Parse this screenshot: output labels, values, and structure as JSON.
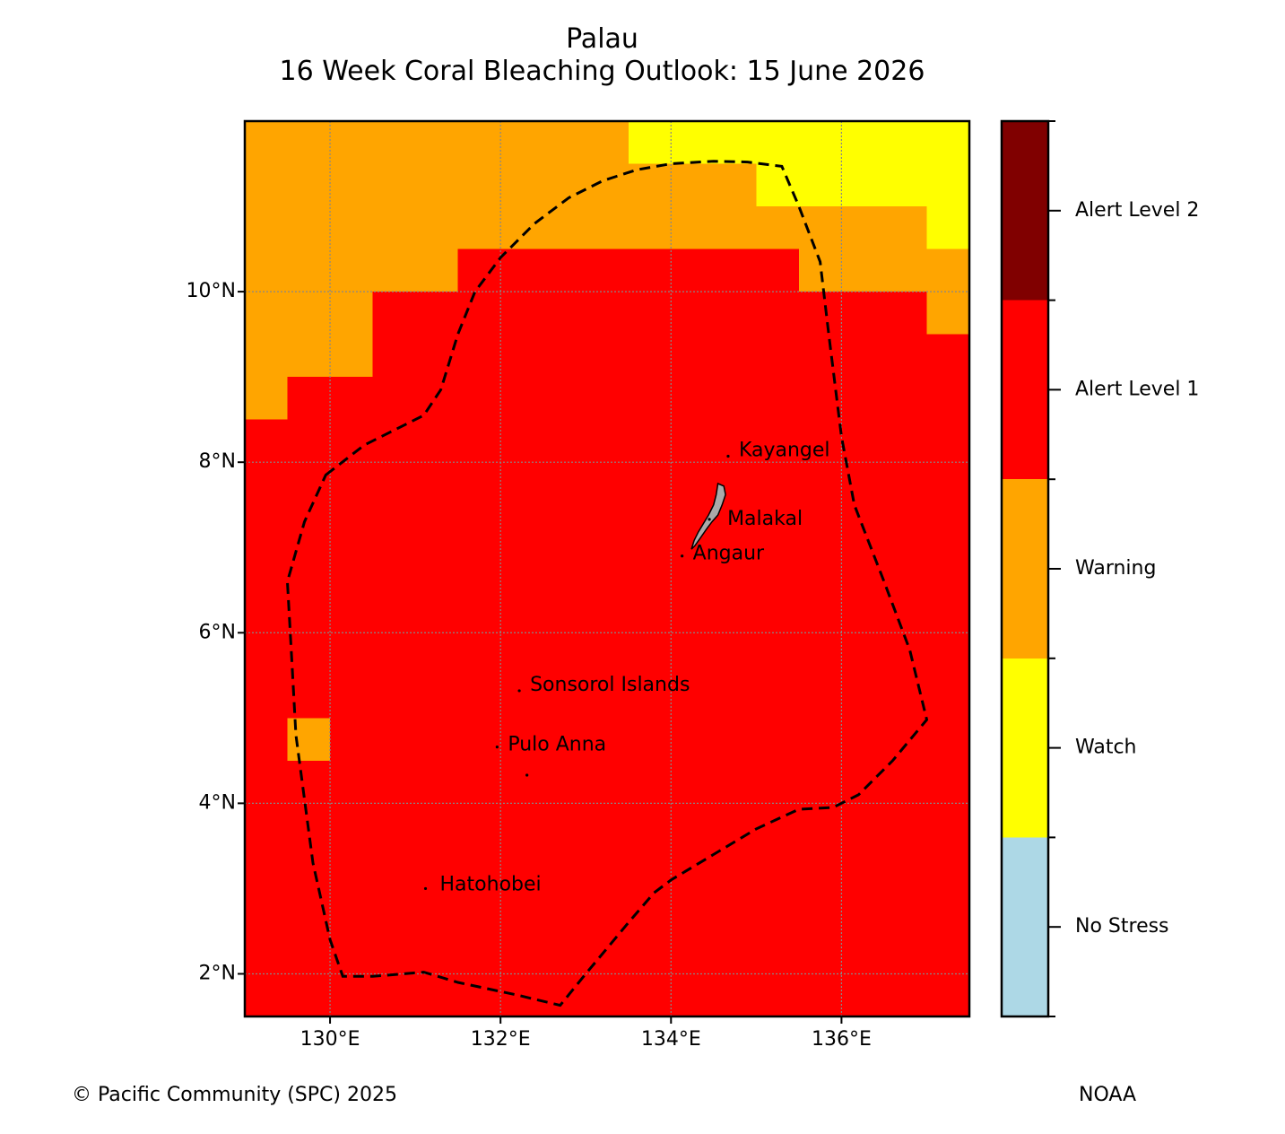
{
  "title": "Palau",
  "subtitle": "16 Week Coral Bleaching Outlook: 15 June 2026",
  "map": {
    "lon_range": [
      129.0,
      137.5
    ],
    "lat_range": [
      1.5,
      12.0
    ],
    "lon_ticks": [
      {
        "value": 130,
        "label": "130°E"
      },
      {
        "value": 132,
        "label": "132°E"
      },
      {
        "value": 134,
        "label": "134°E"
      },
      {
        "value": 136,
        "label": "136°E"
      }
    ],
    "lat_ticks": [
      {
        "value": 10,
        "label": "10°N"
      },
      {
        "value": 8,
        "label": "8°N"
      },
      {
        "value": 6,
        "label": "6°N"
      },
      {
        "value": 4,
        "label": "4°N"
      },
      {
        "value": 2,
        "label": "2°N"
      }
    ],
    "grid": true,
    "cells": [
      {
        "lon": [
          129.0,
          137.5
        ],
        "lat": [
          1.5,
          12.0
        ],
        "level": 3
      },
      {
        "lon": [
          129.0,
          133.5
        ],
        "lat": [
          11.5,
          12.0
        ],
        "level": 2
      },
      {
        "lon": [
          129.0,
          131.5
        ],
        "lat": [
          10.0,
          11.5
        ],
        "level": 2
      },
      {
        "lon": [
          131.5,
          135.0
        ],
        "lat": [
          10.5,
          11.5
        ],
        "level": 2
      },
      {
        "lon": [
          135.0,
          136.5
        ],
        "lat": [
          10.5,
          11.0
        ],
        "level": 2
      },
      {
        "lon": [
          135.5,
          136.5
        ],
        "lat": [
          10.0,
          10.5
        ],
        "level": 2
      },
      {
        "lon": [
          136.5,
          137.0
        ],
        "lat": [
          10.0,
          11.0
        ],
        "level": 2
      },
      {
        "lon": [
          137.0,
          137.5
        ],
        "lat": [
          9.5,
          10.5
        ],
        "level": 2
      },
      {
        "lon": [
          129.0,
          130.5
        ],
        "lat": [
          9.0,
          10.0
        ],
        "level": 2
      },
      {
        "lon": [
          129.0,
          129.5
        ],
        "lat": [
          8.5,
          9.0
        ],
        "level": 2
      },
      {
        "lon": [
          129.5,
          130.0
        ],
        "lat": [
          4.5,
          5.0
        ],
        "level": 2
      },
      {
        "lon": [
          133.5,
          135.0
        ],
        "lat": [
          11.5,
          12.0
        ],
        "level": 1
      },
      {
        "lon": [
          135.0,
          137.5
        ],
        "lat": [
          11.0,
          12.0
        ],
        "level": 1
      },
      {
        "lon": [
          137.0,
          137.5
        ],
        "lat": [
          10.5,
          11.0
        ],
        "level": 1
      }
    ],
    "eez_boundary": [
      [
        129.95,
        7.85
      ],
      [
        130.4,
        8.2
      ],
      [
        131.1,
        8.55
      ],
      [
        131.3,
        8.85
      ],
      [
        131.5,
        9.5
      ],
      [
        131.7,
        10.0
      ],
      [
        132.0,
        10.4
      ],
      [
        132.4,
        10.8
      ],
      [
        132.8,
        11.1
      ],
      [
        133.2,
        11.3
      ],
      [
        133.6,
        11.43
      ],
      [
        134.0,
        11.5
      ],
      [
        134.5,
        11.53
      ],
      [
        134.9,
        11.52
      ],
      [
        135.3,
        11.47
      ],
      [
        135.5,
        11.0
      ],
      [
        135.75,
        10.35
      ],
      [
        135.85,
        9.5
      ],
      [
        136.0,
        8.3
      ],
      [
        136.15,
        7.5
      ],
      [
        136.5,
        6.6
      ],
      [
        136.8,
        5.8
      ],
      [
        137.0,
        4.98
      ],
      [
        136.6,
        4.5
      ],
      [
        136.2,
        4.1
      ],
      [
        135.9,
        3.95
      ],
      [
        135.5,
        3.93
      ],
      [
        135.0,
        3.7
      ],
      [
        134.5,
        3.4
      ],
      [
        134.0,
        3.1
      ],
      [
        133.8,
        2.95
      ],
      [
        133.5,
        2.6
      ],
      [
        133.0,
        2.0
      ],
      [
        132.7,
        1.63
      ],
      [
        132.2,
        1.75
      ],
      [
        131.5,
        1.9
      ],
      [
        131.1,
        2.02
      ],
      [
        130.5,
        1.97
      ],
      [
        130.15,
        1.97
      ],
      [
        130.0,
        2.4
      ],
      [
        129.8,
        3.3
      ],
      [
        129.6,
        4.8
      ],
      [
        129.55,
        5.7
      ],
      [
        129.5,
        6.6
      ],
      [
        129.7,
        7.3
      ],
      [
        129.95,
        7.85
      ]
    ],
    "islands": [
      {
        "name": "Kayangel",
        "lon": 134.67,
        "lat": 8.07,
        "label_dx": 12,
        "label_dy": -6
      },
      {
        "name": "Malakal",
        "lon": 134.45,
        "lat": 7.33,
        "label_dx": 20,
        "label_dy": 0
      },
      {
        "name": "Angaur",
        "lon": 134.13,
        "lat": 6.9,
        "label_dx": 12,
        "label_dy": -2
      },
      {
        "name": "Sonsorol Islands",
        "lon": 132.22,
        "lat": 5.32,
        "label_dx": 12,
        "label_dy": -6
      },
      {
        "name": "Pulo Anna",
        "lon": 131.96,
        "lat": 4.66,
        "label_dx": 12,
        "label_dy": -2
      },
      {
        "name": "",
        "lon": 132.31,
        "lat": 4.33,
        "label_dx": 0,
        "label_dy": 0
      },
      {
        "name": "Hatohobei",
        "lon": 131.12,
        "lat": 3.0,
        "label_dx": 16,
        "label_dy": -4
      }
    ],
    "main_island": [
      [
        134.55,
        7.75
      ],
      [
        134.62,
        7.72
      ],
      [
        134.64,
        7.62
      ],
      [
        134.6,
        7.5
      ],
      [
        134.55,
        7.38
      ],
      [
        134.48,
        7.3
      ],
      [
        134.42,
        7.22
      ],
      [
        134.35,
        7.12
      ],
      [
        134.28,
        7.02
      ],
      [
        134.24,
        6.98
      ],
      [
        134.27,
        7.08
      ],
      [
        134.32,
        7.18
      ],
      [
        134.38,
        7.28
      ],
      [
        134.44,
        7.38
      ],
      [
        134.5,
        7.5
      ],
      [
        134.53,
        7.62
      ],
      [
        134.55,
        7.75
      ]
    ]
  },
  "colors": {
    "level0": "#add8e6",
    "level1": "#ffff00",
    "level2": "#ffa500",
    "level3": "#ff0000",
    "level4": "#800000",
    "boundary": "#000000",
    "island": "#aaaaaa"
  },
  "legend": {
    "levels": [
      {
        "label": "No Stress",
        "color": "#add8e6"
      },
      {
        "label": "Watch",
        "color": "#ffff00"
      },
      {
        "label": "Warning",
        "color": "#ffa500"
      },
      {
        "label": "Alert Level 1",
        "color": "#ff0000"
      },
      {
        "label": "Alert Level 2",
        "color": "#800000"
      }
    ]
  },
  "footer": {
    "left": "© Pacific Community (SPC) 2025",
    "right": "NOAA"
  }
}
